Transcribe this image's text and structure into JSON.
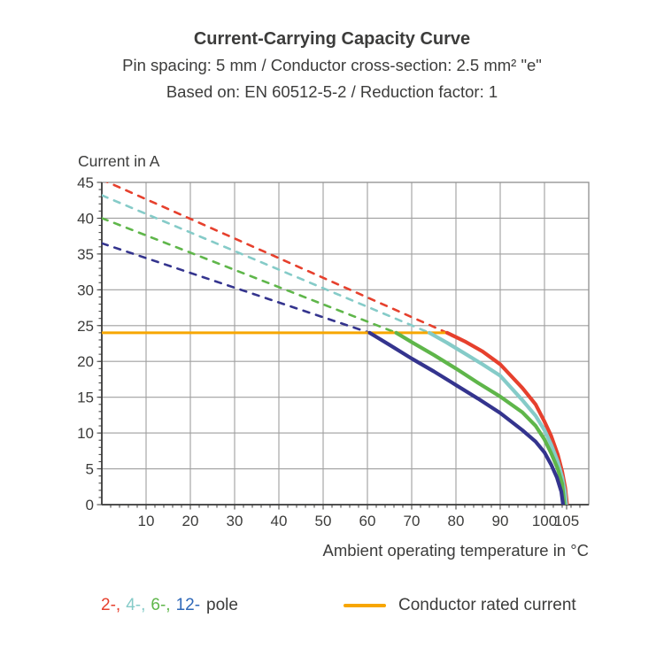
{
  "header": {
    "title": "Current-Carrying Capacity Curve",
    "subtitle1": "Pin spacing: 5 mm / Conductor cross-section: 2.5 mm² \"e\"",
    "subtitle2": "Based on: EN 60512-5-2 / Reduction factor: 1"
  },
  "chart_data": {
    "type": "line",
    "title": "Current-Carrying Capacity Curve",
    "xlabel": "Ambient operating temperature in °C",
    "ylabel": "Current in A",
    "xlim": [
      0,
      110
    ],
    "ylim": [
      0,
      45
    ],
    "x_ticks": [
      10,
      20,
      30,
      40,
      50,
      60,
      70,
      80,
      90,
      100,
      105
    ],
    "x_gridlines": [
      10,
      20,
      30,
      40,
      50,
      60,
      70,
      80,
      90,
      100
    ],
    "y_ticks": [
      0,
      5,
      10,
      15,
      20,
      25,
      30,
      35,
      40,
      45
    ],
    "x_minor_step": 2,
    "y_minor_step": 1,
    "grid": true,
    "rated_current_A": 24,
    "series": [
      {
        "name": "2-pole",
        "color": "#e6402d",
        "dashed": [
          [
            0,
            45.4
          ],
          [
            78,
            24
          ]
        ],
        "solid": [
          [
            78,
            24
          ],
          [
            82,
            22.8
          ],
          [
            86,
            21.4
          ],
          [
            90,
            19.6
          ],
          [
            95,
            16.3
          ],
          [
            98,
            14.0
          ],
          [
            100,
            11.6
          ],
          [
            101.5,
            9.6
          ],
          [
            103,
            7.0
          ],
          [
            104,
            4.6
          ],
          [
            104.7,
            2.3
          ],
          [
            105.1,
            0
          ]
        ]
      },
      {
        "name": "4-pole",
        "color": "#85cbc8",
        "dashed": [
          [
            0,
            43.2
          ],
          [
            74,
            24
          ]
        ],
        "solid": [
          [
            74,
            24
          ],
          [
            78,
            22.6
          ],
          [
            82,
            21.1
          ],
          [
            86,
            19.6
          ],
          [
            90,
            18.0
          ],
          [
            95,
            14.6
          ],
          [
            98,
            12.4
          ],
          [
            100,
            10.4
          ],
          [
            101.5,
            8.4
          ],
          [
            103,
            6.0
          ],
          [
            104,
            3.8
          ],
          [
            104.6,
            1.8
          ],
          [
            104.9,
            0
          ]
        ]
      },
      {
        "name": "6-pole",
        "color": "#5fb64a",
        "dashed": [
          [
            0,
            40
          ],
          [
            66.5,
            24
          ]
        ],
        "solid": [
          [
            66.5,
            24
          ],
          [
            70,
            22.7
          ],
          [
            75,
            20.9
          ],
          [
            80,
            19.0
          ],
          [
            85,
            17.0
          ],
          [
            90,
            15.1
          ],
          [
            95,
            12.9
          ],
          [
            98,
            11.0
          ],
          [
            100,
            9.1
          ],
          [
            101.5,
            7.2
          ],
          [
            103,
            5.0
          ],
          [
            104,
            2.9
          ],
          [
            104.5,
            0
          ]
        ]
      },
      {
        "name": "12-pole",
        "color": "#34348e",
        "dashed": [
          [
            0,
            36.5
          ],
          [
            60.5,
            24
          ]
        ],
        "solid": [
          [
            60.5,
            24
          ],
          [
            65,
            22.3
          ],
          [
            70,
            20.4
          ],
          [
            75,
            18.6
          ],
          [
            80,
            16.7
          ],
          [
            85,
            14.8
          ],
          [
            90,
            12.8
          ],
          [
            95,
            10.4
          ],
          [
            98,
            8.8
          ],
          [
            100,
            7.3
          ],
          [
            101.5,
            5.6
          ],
          [
            102.8,
            3.8
          ],
          [
            103.8,
            1.8
          ],
          [
            104.2,
            0
          ]
        ]
      },
      {
        "name": "Conductor rated current",
        "color": "#f7a600",
        "width": 3,
        "solid": [
          [
            0,
            24
          ],
          [
            78,
            24
          ]
        ]
      }
    ]
  },
  "legend": {
    "pole_parts": [
      {
        "text": "2-,",
        "color": "#e6402d"
      },
      {
        "text": "4-,",
        "color": "#85cbc8"
      },
      {
        "text": "6-,",
        "color": "#5fb64a"
      },
      {
        "text": "12-",
        "color": "#2e68b8"
      }
    ],
    "pole_suffix": "pole",
    "rated_label": "Conductor rated current",
    "rated_color": "#f7a600"
  },
  "colors": {
    "text": "#3c3c3b",
    "grid": "#9f9f9f",
    "frame": "#8f8f8f",
    "axis": "#3c3c3b"
  }
}
